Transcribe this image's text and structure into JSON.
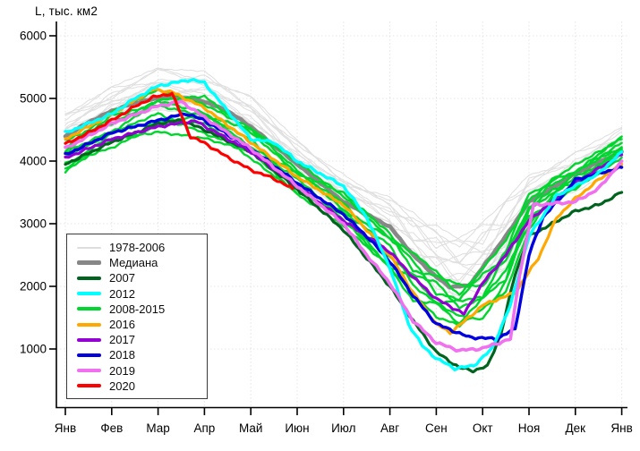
{
  "chart_data": {
    "type": "line",
    "title": "",
    "ylabel": "L, тыс. км2",
    "xlabel": "",
    "x_tick_labels": [
      "Янв",
      "Фев",
      "Мар",
      "Апр",
      "Май",
      "Июн",
      "Июл",
      "Авг",
      "Сен",
      "Окт",
      "Ноя",
      "Дек",
      "Янв"
    ],
    "y_ticks": [
      1000,
      2000,
      3000,
      4000,
      5000,
      6000
    ],
    "ylim": [
      70,
      6220
    ],
    "grid": "dotted light-gray horizontal at each 1000 and vertical at each month",
    "legend_position": "lower-left",
    "units": "thousand km2 sea ice extent, January through January",
    "series": [
      {
        "name": "1978-2006",
        "kind": "ensemble-band",
        "color": "#dedede",
        "width": 1.1,
        "line_count": 16,
        "months": [
          0,
          1,
          2,
          3,
          4,
          5,
          6,
          7,
          7.5,
          8,
          8.5,
          9,
          9.5,
          10,
          11,
          12
        ],
        "min": [
          4150,
          4550,
          4800,
          4750,
          4350,
          3700,
          3200,
          2700,
          2250,
          1950,
          1750,
          1850,
          2250,
          3050,
          3500,
          3900
        ],
        "max": [
          4800,
          5200,
          5500,
          5450,
          5050,
          4350,
          3800,
          3450,
          3200,
          3000,
          2850,
          3050,
          3400,
          3800,
          4150,
          4550
        ]
      },
      {
        "name": "Медиана",
        "kind": "line",
        "color": "#878787",
        "width": 4.6,
        "points": [
          [
            0,
            4400
          ],
          [
            0.5,
            4620
          ],
          [
            1,
            4800
          ],
          [
            1.5,
            4930
          ],
          [
            2,
            5000
          ],
          [
            2.5,
            5020
          ],
          [
            3,
            4950
          ],
          [
            3.5,
            4800
          ],
          [
            4,
            4550
          ],
          [
            4.5,
            4250
          ],
          [
            5,
            3950
          ],
          [
            5.5,
            3650
          ],
          [
            6,
            3350
          ],
          [
            6.5,
            3150
          ],
          [
            7,
            2950
          ],
          [
            7.5,
            2500
          ],
          [
            8,
            2150
          ],
          [
            8.3,
            1990
          ],
          [
            8.7,
            2010
          ],
          [
            9,
            2300
          ],
          [
            9.5,
            2800
          ],
          [
            10,
            3350
          ],
          [
            10.5,
            3570
          ],
          [
            11,
            3800
          ],
          [
            11.5,
            3980
          ],
          [
            12,
            4150
          ]
        ]
      },
      {
        "name": "2008-2015",
        "kind": "ensemble-band",
        "color": "#00d62e",
        "width": 2.4,
        "line_count": 8,
        "months": [
          0,
          1,
          2,
          3,
          4,
          5,
          6,
          7,
          7.5,
          8,
          8.5,
          9,
          9.5,
          10,
          10.5,
          11,
          12
        ],
        "min": [
          3800,
          4200,
          4450,
          4350,
          4000,
          3450,
          2950,
          2150,
          1750,
          1500,
          1310,
          1450,
          1900,
          2900,
          3300,
          3550,
          4050
        ],
        "max": [
          4350,
          4800,
          5150,
          5050,
          4600,
          4000,
          3500,
          2950,
          2550,
          2250,
          2050,
          2300,
          2750,
          3500,
          3750,
          3950,
          4400
        ]
      },
      {
        "name": "2007",
        "kind": "line",
        "color": "#00641e",
        "width": 3.2,
        "points": [
          [
            0,
            3950
          ],
          [
            1,
            4300
          ],
          [
            2,
            4600
          ],
          [
            2.5,
            4650
          ],
          [
            3,
            4500
          ],
          [
            4,
            4150
          ],
          [
            5,
            3550
          ],
          [
            6,
            2900
          ],
          [
            6.5,
            2450
          ],
          [
            7,
            2000
          ],
          [
            7.5,
            1450
          ],
          [
            8,
            950
          ],
          [
            8.5,
            700
          ],
          [
            8.8,
            655
          ],
          [
            9.1,
            720
          ],
          [
            9.4,
            1250
          ],
          [
            9.7,
            2200
          ],
          [
            10,
            2800
          ],
          [
            10.5,
            3000
          ],
          [
            11,
            3200
          ],
          [
            11.5,
            3300
          ],
          [
            12,
            3500
          ]
        ]
      },
      {
        "name": "2016",
        "kind": "line",
        "color": "#ffa800",
        "width": 3.2,
        "points": [
          [
            0,
            4350
          ],
          [
            1,
            4750
          ],
          [
            1.9,
            5150
          ],
          [
            2.3,
            5100
          ],
          [
            3,
            4850
          ],
          [
            4,
            4300
          ],
          [
            5,
            3750
          ],
          [
            6,
            3300
          ],
          [
            6.5,
            2900
          ],
          [
            7,
            2500
          ],
          [
            7.5,
            1900
          ],
          [
            8,
            1400
          ],
          [
            8.3,
            1260
          ],
          [
            8.7,
            1500
          ],
          [
            9,
            1700
          ],
          [
            9.7,
            1900
          ],
          [
            10.2,
            2450
          ],
          [
            10.6,
            3100
          ],
          [
            11,
            3400
          ],
          [
            11.5,
            3700
          ],
          [
            12,
            3950
          ]
        ]
      },
      {
        "name": "2017",
        "kind": "line",
        "color": "#9400d3",
        "width": 3.2,
        "points": [
          [
            0,
            4050
          ],
          [
            1,
            4350
          ],
          [
            2,
            4550
          ],
          [
            2.8,
            4640
          ],
          [
            3,
            4560
          ],
          [
            4,
            4150
          ],
          [
            5,
            3600
          ],
          [
            6,
            3050
          ],
          [
            6.5,
            2800
          ],
          [
            7,
            2550
          ],
          [
            7.5,
            2150
          ],
          [
            8,
            1800
          ],
          [
            8.6,
            1560
          ],
          [
            9,
            2050
          ],
          [
            9.5,
            2500
          ],
          [
            10,
            3050
          ],
          [
            10.5,
            3350
          ],
          [
            11,
            3650
          ],
          [
            11.5,
            3880
          ],
          [
            12,
            4100
          ]
        ]
      },
      {
        "name": "2018",
        "kind": "line",
        "color": "#0000e0",
        "width": 3.4,
        "points": [
          [
            0,
            4100
          ],
          [
            1,
            4450
          ],
          [
            2,
            4650
          ],
          [
            2.6,
            4760
          ],
          [
            3,
            4650
          ],
          [
            4,
            4200
          ],
          [
            5,
            3650
          ],
          [
            6,
            3150
          ],
          [
            6.5,
            2800
          ],
          [
            7,
            2400
          ],
          [
            7.5,
            1850
          ],
          [
            8,
            1400
          ],
          [
            8.7,
            1190
          ],
          [
            9.3,
            1160
          ],
          [
            9.7,
            1320
          ],
          [
            10,
            2500
          ],
          [
            10.3,
            3100
          ],
          [
            10.6,
            3350
          ],
          [
            11,
            3700
          ],
          [
            11.5,
            3800
          ],
          [
            12,
            3900
          ]
        ]
      },
      {
        "name": "2012",
        "kind": "line",
        "color": "#00ffff",
        "width": 3.4,
        "points": [
          [
            0,
            4450
          ],
          [
            1,
            4750
          ],
          [
            1.5,
            5000
          ],
          [
            2,
            5200
          ],
          [
            2.7,
            5300
          ],
          [
            3,
            5250
          ],
          [
            3.5,
            4800
          ],
          [
            4,
            4350
          ],
          [
            4.5,
            4300
          ],
          [
            5,
            4000
          ],
          [
            5.5,
            3800
          ],
          [
            6,
            3600
          ],
          [
            6.5,
            3100
          ],
          [
            7,
            2300
          ],
          [
            7.4,
            1400
          ],
          [
            7.7,
            1050
          ],
          [
            8,
            850
          ],
          [
            8.4,
            690
          ],
          [
            8.8,
            730
          ],
          [
            9.2,
            1000
          ],
          [
            9.6,
            1700
          ],
          [
            10,
            2800
          ],
          [
            10.6,
            3450
          ],
          [
            11,
            3600
          ],
          [
            11.5,
            3800
          ],
          [
            12,
            4150
          ]
        ]
      },
      {
        "name": "2019",
        "kind": "line",
        "color": "#f070f0",
        "width": 3.6,
        "points": [
          [
            0,
            4200
          ],
          [
            1,
            4600
          ],
          [
            2,
            4880
          ],
          [
            2.5,
            4950
          ],
          [
            3,
            4700
          ],
          [
            4,
            4200
          ],
          [
            5,
            3600
          ],
          [
            6,
            3000
          ],
          [
            6.5,
            2500
          ],
          [
            7,
            2050
          ],
          [
            7.5,
            1450
          ],
          [
            8,
            1100
          ],
          [
            8.5,
            975
          ],
          [
            9,
            1010
          ],
          [
            9.6,
            1160
          ],
          [
            9.8,
            2200
          ],
          [
            10.1,
            3300
          ],
          [
            10.5,
            3320
          ],
          [
            11,
            3350
          ],
          [
            11.5,
            3560
          ],
          [
            12,
            4000
          ]
        ]
      },
      {
        "name": "2020",
        "kind": "line",
        "color": "#ff0000",
        "width": 3.2,
        "points": [
          [
            0,
            4270
          ],
          [
            0.5,
            4450
          ],
          [
            1,
            4650
          ],
          [
            1.5,
            4870
          ],
          [
            1.9,
            5020
          ],
          [
            2.3,
            5080
          ],
          [
            2.7,
            4390
          ],
          [
            3,
            4290
          ],
          [
            3.5,
            4060
          ],
          [
            4,
            3860
          ],
          [
            4.5,
            3720
          ],
          [
            4.9,
            3560
          ]
        ]
      }
    ]
  },
  "legend": {
    "items": [
      {
        "label": "1978-2006",
        "color": "#dedede",
        "thickness": 2
      },
      {
        "label": "Медиана",
        "color": "#878787",
        "thickness": 5
      },
      {
        "label": "2007",
        "color": "#00641e",
        "thickness": 4
      },
      {
        "label": "2012",
        "color": "#00ffff",
        "thickness": 4
      },
      {
        "label": "2008-2015",
        "color": "#00d62e",
        "thickness": 4
      },
      {
        "label": "2016",
        "color": "#ffa800",
        "thickness": 4
      },
      {
        "label": "2017",
        "color": "#9400d3",
        "thickness": 4
      },
      {
        "label": "2018",
        "color": "#0000e0",
        "thickness": 4
      },
      {
        "label": "2019",
        "color": "#f070f0",
        "thickness": 4
      },
      {
        "label": "2020",
        "color": "#ff0000",
        "thickness": 4
      }
    ]
  },
  "axes_style": {
    "axis_color": "#000000",
    "grid_color": "#e4e4e4",
    "tick_label_color": "#000000"
  }
}
